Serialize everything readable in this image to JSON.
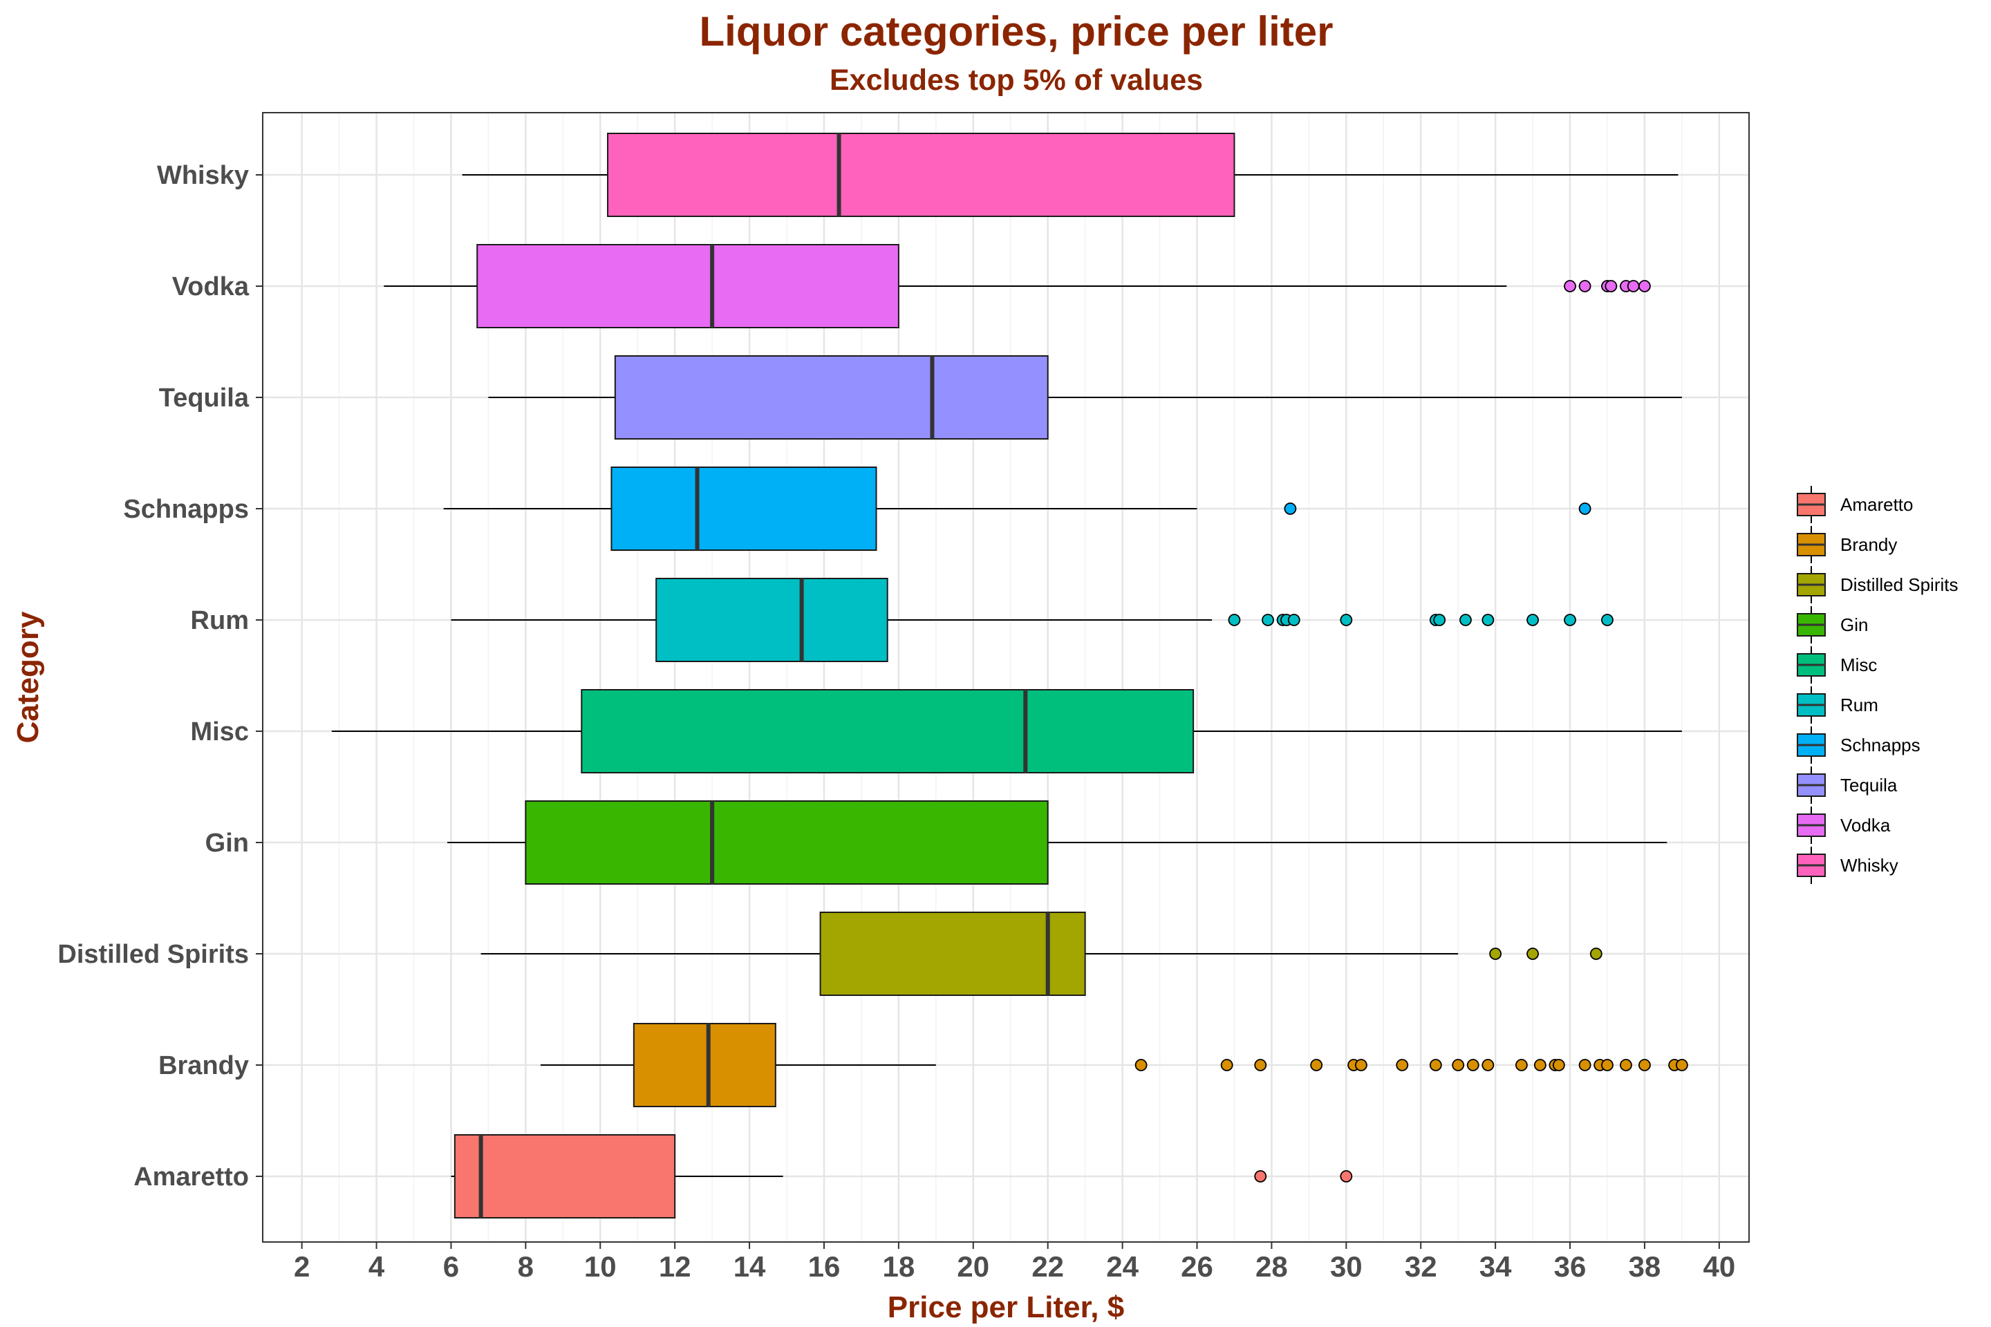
{
  "chart_data": {
    "type": "boxplot",
    "title": "Liquor categories, price per liter",
    "subtitle": "Excludes top 5% of values",
    "xlabel": "Price per Liter, $",
    "ylabel": "Category",
    "xlim": [
      0.95,
      40.8
    ],
    "x_ticks": [
      2,
      4,
      6,
      8,
      10,
      12,
      14,
      16,
      18,
      20,
      22,
      24,
      26,
      28,
      30,
      32,
      34,
      36,
      38,
      40
    ],
    "grid": true,
    "legend_position": "right",
    "categories": [
      "Amaretto",
      "Brandy",
      "Distilled Spirits",
      "Gin",
      "Misc",
      "Rum",
      "Schnapps",
      "Tequila",
      "Vodka",
      "Whisky"
    ],
    "series": [
      {
        "name": "Amaretto",
        "color": "#F8766D",
        "whisker_low": 6.0,
        "q1": 6.1,
        "median": 6.8,
        "q3": 12.0,
        "whisker_high": 14.9,
        "outliers": [
          27.7,
          30.0
        ]
      },
      {
        "name": "Brandy",
        "color": "#D89000",
        "whisker_low": 8.4,
        "q1": 10.9,
        "median": 12.9,
        "q3": 14.7,
        "whisker_high": 19.0,
        "outliers": [
          24.5,
          26.8,
          27.7,
          29.2,
          30.2,
          30.4,
          31.5,
          32.4,
          33.0,
          33.4,
          33.8,
          34.7,
          35.2,
          35.6,
          35.7,
          36.4,
          36.8,
          37.0,
          37.5,
          38.0,
          38.8,
          39.0
        ]
      },
      {
        "name": "Distilled Spirits",
        "color": "#A3A500",
        "whisker_low": 6.8,
        "q1": 15.9,
        "median": 22.0,
        "q3": 23.0,
        "whisker_high": 33.0,
        "outliers": [
          34.0,
          35.0,
          36.7
        ]
      },
      {
        "name": "Gin",
        "color": "#39B600",
        "whisker_low": 5.9,
        "q1": 8.0,
        "median": 13.0,
        "q3": 22.0,
        "whisker_high": 38.6,
        "outliers": []
      },
      {
        "name": "Misc",
        "color": "#00BF7D",
        "whisker_low": 2.8,
        "q1": 9.5,
        "median": 21.4,
        "q3": 25.9,
        "whisker_high": 39.0,
        "outliers": []
      },
      {
        "name": "Rum",
        "color": "#00BFC4",
        "whisker_low": 6.0,
        "q1": 11.5,
        "median": 15.4,
        "q3": 17.7,
        "whisker_high": 26.4,
        "outliers": [
          27.0,
          27.9,
          28.3,
          28.4,
          28.6,
          30.0,
          32.4,
          32.5,
          33.2,
          33.8,
          35.0,
          36.0,
          37.0
        ]
      },
      {
        "name": "Schnapps",
        "color": "#00B0F6",
        "whisker_low": 5.8,
        "q1": 10.3,
        "median": 12.6,
        "q3": 17.4,
        "whisker_high": 26.0,
        "outliers": [
          28.5,
          36.4
        ]
      },
      {
        "name": "Tequila",
        "color": "#9590FF",
        "whisker_low": 7.0,
        "q1": 10.4,
        "median": 18.9,
        "q3": 22.0,
        "whisker_high": 39.0,
        "outliers": []
      },
      {
        "name": "Vodka",
        "color": "#E76BF3",
        "whisker_low": 4.2,
        "q1": 6.7,
        "median": 13.0,
        "q3": 18.0,
        "whisker_high": 34.3,
        "outliers": [
          36.0,
          36.4,
          37.0,
          37.1,
          37.5,
          37.7,
          38.0
        ]
      },
      {
        "name": "Whisky",
        "color": "#FF62BC",
        "whisker_low": 6.3,
        "q1": 10.2,
        "median": 16.4,
        "q3": 27.0,
        "whisker_high": 38.9,
        "outliers": []
      }
    ]
  }
}
